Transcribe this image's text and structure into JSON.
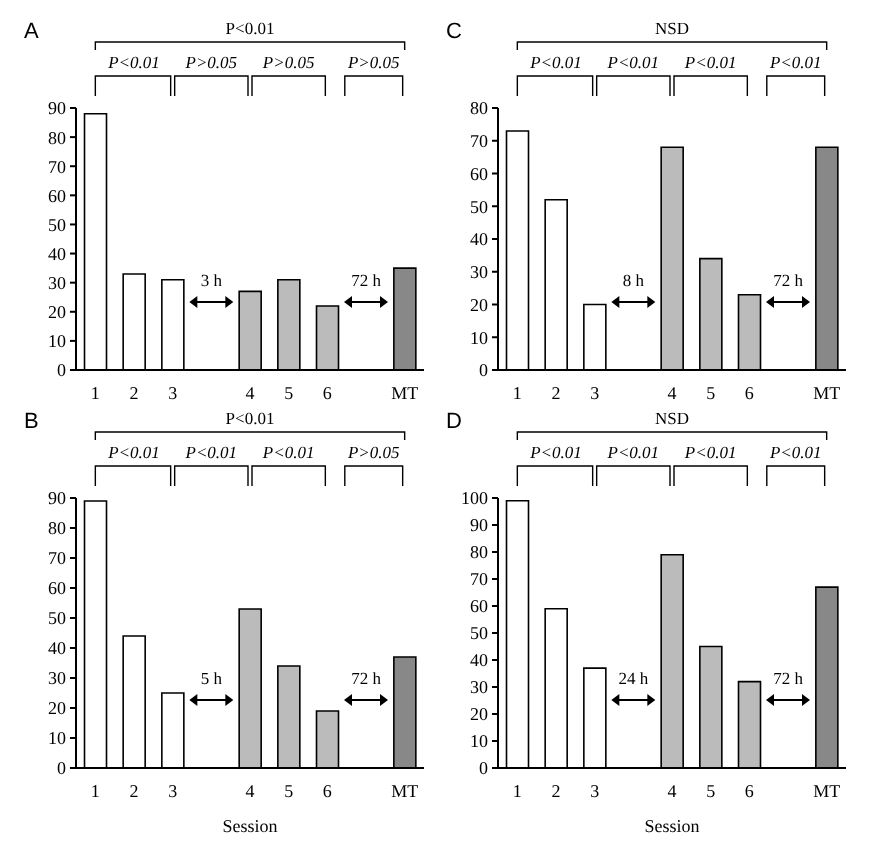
{
  "chart_data": [
    {
      "type": "bar",
      "title": "A",
      "categories": [
        "1",
        "2",
        "3",
        null,
        "4",
        "5",
        "6",
        null,
        "MT"
      ],
      "values": [
        88,
        33,
        31,
        null,
        27,
        31,
        22,
        null,
        35
      ],
      "colors": [
        "#ffffff",
        "#ffffff",
        "#ffffff",
        "#ffffff",
        "#bbbbbb",
        "#bbbbbb",
        "#bbbbbb",
        "#ffffff",
        "#888888"
      ],
      "ylim": [
        0,
        90
      ],
      "yticks": [
        0,
        10,
        20,
        30,
        40,
        50,
        60,
        70,
        80,
        90
      ],
      "annotations": [
        "P<0.01",
        "P<0.01",
        "P>0.05",
        "P>0.05",
        "P>0.05",
        "3 h",
        "72 h"
      ]
    },
    {
      "type": "bar",
      "title": "C",
      "categories": [
        "1",
        "2",
        "3",
        null,
        "4",
        "5",
        "6",
        null,
        "MT"
      ],
      "values": [
        73,
        52,
        20,
        null,
        68,
        34,
        23,
        null,
        68
      ],
      "colors": [
        "#ffffff",
        "#ffffff",
        "#ffffff",
        "#ffffff",
        "#bbbbbb",
        "#bbbbbb",
        "#bbbbbb",
        "#ffffff",
        "#888888"
      ],
      "ylim": [
        0,
        80
      ],
      "yticks": [
        0,
        10,
        20,
        30,
        40,
        50,
        60,
        70,
        80
      ],
      "annotations": [
        "NSD",
        "P<0.01",
        "P<0.01",
        "P<0.01",
        "P<0.01",
        "8 h",
        "72 h"
      ]
    },
    {
      "type": "bar",
      "title": "B",
      "xlabel": "Session",
      "categories": [
        "1",
        "2",
        "3",
        null,
        "4",
        "5",
        "6",
        null,
        "MT"
      ],
      "values": [
        89,
        44,
        25,
        null,
        53,
        34,
        19,
        null,
        37
      ],
      "colors": [
        "#ffffff",
        "#ffffff",
        "#ffffff",
        "#ffffff",
        "#bbbbbb",
        "#bbbbbb",
        "#bbbbbb",
        "#ffffff",
        "#888888"
      ],
      "ylim": [
        0,
        90
      ],
      "yticks": [
        0,
        10,
        20,
        30,
        40,
        50,
        60,
        70,
        80,
        90
      ],
      "annotations": [
        "P<0.01",
        "P<0.01",
        "P<0.01",
        "P<0.01",
        "P>0.05",
        "5 h",
        "72 h"
      ]
    },
    {
      "type": "bar",
      "title": "D",
      "xlabel": "Session",
      "categories": [
        "1",
        "2",
        "3",
        null,
        "4",
        "5",
        "6",
        null,
        "MT"
      ],
      "values": [
        99,
        59,
        37,
        null,
        79,
        45,
        32,
        null,
        67
      ],
      "colors": [
        "#ffffff",
        "#ffffff",
        "#ffffff",
        "#ffffff",
        "#bbbbbb",
        "#bbbbbb",
        "#bbbbbb",
        "#ffffff",
        "#888888"
      ],
      "ylim": [
        0,
        100
      ],
      "yticks": [
        0,
        10,
        20,
        30,
        40,
        50,
        60,
        70,
        80,
        90,
        100
      ],
      "annotations": [
        "NSD",
        "P<0.01",
        "P<0.01",
        "P<0.01",
        "P<0.01",
        "24 h",
        "72 h"
      ]
    }
  ]
}
